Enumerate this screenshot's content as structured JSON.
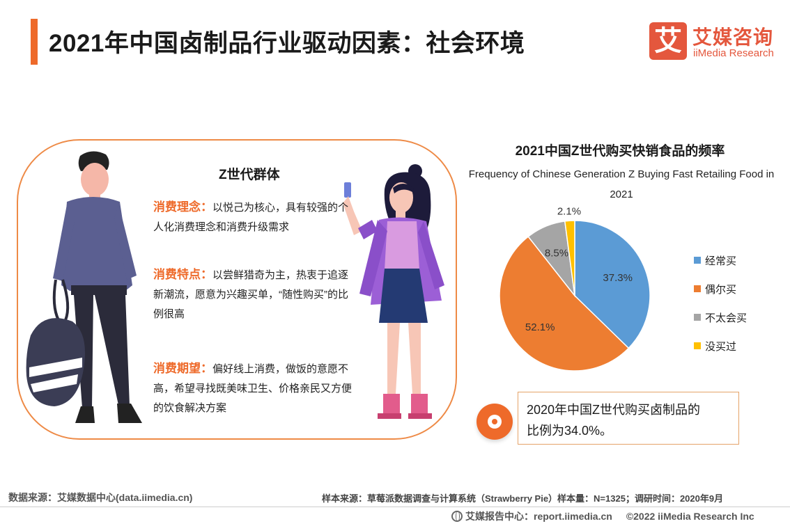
{
  "header": {
    "title": "2021年中国卤制品行业驱动因素：社会环境",
    "logo_mark": "艾",
    "logo_cn": "艾媒咨询",
    "logo_en": "iiMedia Research"
  },
  "group": {
    "title": "Z世代群体",
    "traits": [
      {
        "label": "消费理念：",
        "text": "以悦己为核心，具有较强的个人化消费理念和消费升级需求"
      },
      {
        "label": "消费特点：",
        "text": "以尝鲜猎奇为主，热衷于追逐新潮流，愿意为兴趣买单，“随性购买”的比例很高"
      },
      {
        "label": "消费期望：",
        "text": "偏好线上消费，做饭的意愿不高，希望寻找既美味卫生、价格亲民又方便的饮食解决方案"
      }
    ]
  },
  "chart_data": {
    "type": "pie",
    "title": "2021中国Z世代购买快销食品的频率",
    "subtitle": "Frequency of  Chinese Generation Z Buying Fast Retailing Food in 2021",
    "categories": [
      "经常买",
      "偶尔买",
      "不太会买",
      "没买过"
    ],
    "values": [
      37.3,
      52.1,
      8.5,
      2.1
    ],
    "labels": [
      "37.3%",
      "52.1%",
      "8.5%",
      "2.1%"
    ],
    "colors": [
      "#5b9bd5",
      "#ed7d31",
      "#a5a5a5",
      "#ffc000"
    ],
    "legend_position": "right"
  },
  "note": {
    "line1": "2020年中国Z世代购买卤制品的",
    "line2": "比例为34.0%。"
  },
  "footer": {
    "source_left": "数据来源：艾媒数据中心(data.iimedia.cn)",
    "source_right": "样本来源：草莓派数据调查与计算系统（Strawberry Pie）样本量：N=1325；调研时间：2020年9月",
    "report_center": "艾媒报告中心：report.iimedia.cn",
    "copyright": "©2022  iiMedia Research  Inc"
  }
}
